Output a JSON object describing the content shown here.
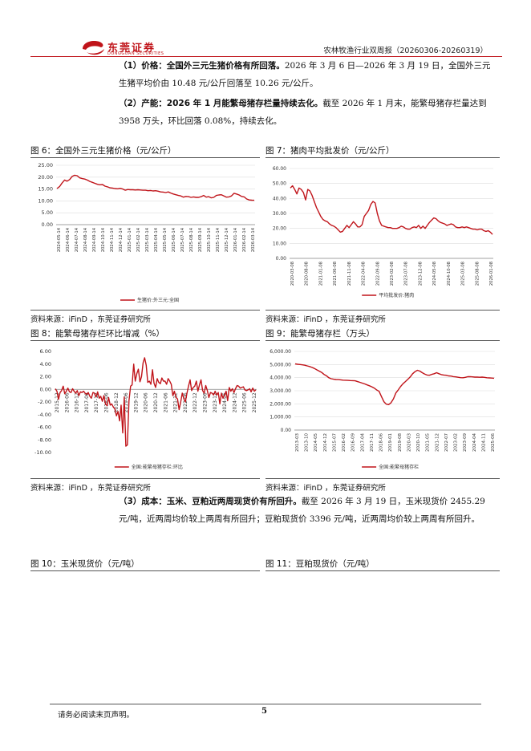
{
  "header": {
    "logo_cn": "东莞证券",
    "logo_en": "DONGGUAN SECURITIES",
    "report_title": "农林牧渔行业双周报（20260306-20260319）"
  },
  "paragraphs": {
    "p1_bold": "（1）价格：全国外三元生猪价格有所回落。",
    "p1_text": "2026 年 3 月 6 日—2026 年 3 月 19 日，全国外三元生猪平均价由 10.48 元/公斤回落至 10.26 元/公斤。",
    "p2_bold": "（2）产能：2026 年 1 月能繁母猪存栏量持续去化。",
    "p2_text": "截至 2026 年 1 月末，能繁母猪存栏量达到 3958 万头，环比回落 0.08%，持续去化。",
    "p3_bold": "（3）成本：玉米、豆粕近两周现货价有所回升。",
    "p3_text": "截至 2026 年 3 月 19 日，玉米现货价 2455.29 元/吨，近两周均价较上两周有所回升；豆粕现货价 3396 元/吨，近两周均价较上两周有所回升。"
  },
  "figures": {
    "fig6_caption": "图 6：全国外三元生猪价格（元/公斤）",
    "fig7_caption": "图 7：猪肉平均批发价（元/公斤）",
    "fig8_caption": "图 8：能繁母猪存栏环比增减（%）",
    "fig9_caption": "图 9：能繁母猪存栏（万头）",
    "fig10_caption": "图 10：玉米现货价（元/吨）",
    "fig11_caption": "图 11：豆粕现货价（元/吨）",
    "source": "资料来源：iFinD ，东莞证券研究所"
  },
  "footer": {
    "disclaimer": "请务必阅读末页声明。",
    "page_number": "5"
  },
  "colors": {
    "series": "#c0141a",
    "brand": "#c0141a"
  },
  "chart_data": [
    {
      "id": "fig6",
      "type": "line",
      "title": "全国外三元生猪价格（元/公斤）",
      "legend": "生猪价:外三元:全国",
      "legend_position": "bottom",
      "ylim": [
        0,
        25
      ],
      "yticks": [
        "25.00",
        "20.00",
        "15.00",
        "10.00",
        "5.00",
        "0.00"
      ],
      "xticks": [
        "2024-05-14",
        "2024-06-14",
        "2024-07-14",
        "2024-08-14",
        "2024-09-14",
        "2024-10-14",
        "2024-11-14",
        "2024-12-14",
        "2025-01-14",
        "2025-02-14",
        "2025-03-14",
        "2025-04-14",
        "2025-05-14",
        "2025-06-14",
        "2025-07-14",
        "2025-08-14",
        "2025-09-14",
        "2025-10-14",
        "2025-11-14",
        "2025-12-14",
        "2026-01-14",
        "2026-02-14",
        "2026-03-14"
      ],
      "values": [
        15.2,
        16.0,
        17.5,
        18.8,
        18.3,
        19.0,
        20.3,
        20.8,
        20.6,
        19.7,
        19.4,
        19.2,
        18.8,
        18.2,
        17.8,
        17.4,
        17.0,
        16.8,
        16.9,
        16.2,
        15.9,
        15.5,
        15.4,
        15.2,
        15.1,
        15.3,
        15.0,
        14.5,
        14.8,
        14.7,
        14.7,
        14.6,
        14.7,
        14.6,
        14.5,
        14.5,
        14.3,
        14.4,
        14.2,
        14.3,
        14.1,
        13.8,
        13.7,
        13.5,
        13.8,
        13.3,
        12.9,
        12.6,
        12.3,
        12.1,
        11.6,
        11.9,
        11.8,
        11.5,
        11.7,
        11.5,
        11.5,
        11.8,
        12.3,
        11.6,
        11.8,
        11.3,
        11.5,
        12.3,
        12.5,
        12.6,
        12.1,
        11.6,
        11.7,
        12.1,
        13.2,
        12.9,
        12.5,
        11.9,
        11.7,
        10.8,
        10.4,
        10.3,
        10.26
      ]
    },
    {
      "id": "fig7",
      "type": "line",
      "title": "猪肉平均批发价（元/公斤）",
      "legend": "平均批发价:猪肉",
      "legend_position": "bottom",
      "ylim": [
        0,
        60
      ],
      "yticks": [
        "60.00",
        "50.00",
        "40.00",
        "30.00",
        "20.00",
        "10.00",
        "0.00"
      ],
      "xticks": [
        "2020-03-08",
        "2020-08-08",
        "2021-01-08",
        "2021-06-08",
        "2021-11-08",
        "2022-04-08",
        "2022-09-08",
        "2023-02-08",
        "2023-07-08",
        "2023-12-08",
        "2024-05-08",
        "2024-10-08",
        "2025-03-08",
        "2025-08-08",
        "2026-01-08"
      ],
      "values": [
        47,
        48.5,
        46,
        43,
        47,
        46,
        44,
        39,
        46,
        45,
        42,
        38,
        34,
        31,
        28,
        26,
        25,
        24.5,
        23,
        22,
        21.5,
        20.5,
        19,
        17.5,
        18,
        20,
        22,
        20.5,
        22.5,
        24.5,
        23,
        21,
        21,
        22.5,
        28,
        30,
        32,
        36,
        38,
        37,
        30,
        25,
        22,
        21.5,
        21,
        20.5,
        20.5,
        20,
        20,
        20,
        20.5,
        21.5,
        21,
        20,
        19.5,
        19.5,
        20.5,
        21,
        20.5,
        22,
        20,
        21.5,
        20,
        22,
        24,
        25.5,
        27,
        26.5,
        25,
        24,
        23.5,
        23,
        22,
        22.5,
        23,
        22.5,
        21,
        20.5,
        20.5,
        21,
        20.5,
        21,
        20.5,
        20,
        19.5,
        19.5,
        19,
        19.5,
        19.5,
        18.5,
        18,
        18.5,
        17.5,
        16
      ]
    },
    {
      "id": "fig8",
      "type": "line",
      "title": "能繁母猪存栏环比增减（%）",
      "legend": "全国:能繁母猪存栏:环比",
      "legend_position": "bottom",
      "ylim": [
        -10,
        6
      ],
      "yticks": [
        "6.00",
        "4.00",
        "2.00",
        "0.00",
        "-2.00",
        "-4.00",
        "-6.00",
        "-8.00",
        "-10.00"
      ],
      "xticks": [
        "2015-12",
        "2016-06",
        "2016-12",
        "2017-06",
        "2017-12",
        "2018-06",
        "2018-12",
        "2019-06",
        "2019-12",
        "2020-06",
        "2020-12",
        "2021-06",
        "2021-12",
        "2022-06",
        "2022-12",
        "2023-06",
        "2023-12",
        "2024-06",
        "2024-12",
        "2025-06",
        "2025-12"
      ],
      "values": [
        0.1,
        -0.3,
        -1.6,
        -0.5,
        -0.2,
        0.5,
        -0.7,
        -0.3,
        0.2,
        -0.4,
        -0.5,
        0.1,
        -0.3,
        -0.6,
        -0.2,
        -1.0,
        -0.4,
        -0.5,
        -0.3,
        -0.6,
        -0.8,
        -0.5,
        -1.1,
        -1.4,
        -0.5,
        -0.6,
        -1.2,
        -0.4,
        -1.4,
        -1.1,
        -1.9,
        -1.0,
        -2.3,
        -2.6,
        -1.3,
        -2.5,
        -2.3,
        -2.8,
        -3.1,
        -4.2,
        -3.5,
        -5.0,
        -2.5,
        -6.9,
        -1.2,
        -9.0,
        -8.8,
        -1.8,
        0.5,
        0.7,
        4.0,
        1.3,
        2.5,
        3.2,
        1.2,
        2.0,
        4.2,
        5.0,
        3.8,
        1.1,
        1.3,
        0.8,
        3.1,
        1.0,
        0.3,
        1.7,
        1.1,
        0.9,
        1.8,
        1.3,
        1.3,
        0.8,
        1.7,
        1.3,
        0.8,
        -1.0,
        -0.3,
        -1.3,
        -1.5,
        -3.2,
        -2.0,
        -0.6,
        -1.5,
        -2.0,
        -0.6,
        0.5,
        1.5,
        -0.2,
        0.3,
        0.5,
        1.3,
        -0.3,
        0.7,
        1.5,
        -0.2,
        -0.6,
        0.6,
        -0.2,
        -1.3,
        -0.5,
        -0.6,
        -0.9,
        -0.3,
        -0.9,
        -0.5,
        -2.3,
        -0.6,
        -1.4,
        -0.9,
        -0.3,
        -1.8,
        0.3,
        -0.3,
        0.1,
        -0.5,
        0.1,
        0.6,
        0.5,
        0.2,
        0.3,
        0.4,
        -0.1,
        -0.2,
        -0.1,
        0.1,
        -0.4,
        0.2,
        -0.3,
        -0.08
      ]
    },
    {
      "id": "fig9",
      "type": "line",
      "title": "能繁母猪存栏（万头）",
      "legend": "全国:能繁母猪存栏",
      "legend_position": "bottom",
      "ylim": [
        0,
        6000
      ],
      "yticks": [
        "6,000.00",
        "5,000.00",
        "4,000.00",
        "3,000.00",
        "2,000.00",
        "1,000.00",
        "0.00"
      ],
      "xticks": [
        "2013-03",
        "2013-10",
        "2014-05",
        "2014-12",
        "2015-07",
        "2016-02",
        "2016-09",
        "2017-04",
        "2017-11",
        "2018-06",
        "2019-01",
        "2019-08",
        "2020-03",
        "2020-10",
        "2021-05",
        "2021-12",
        "2022-07",
        "2023-02",
        "2023-09",
        "2024-04",
        "2024-11",
        "2025-06"
      ],
      "values": [
        5050,
        5020,
        5000,
        4980,
        4950,
        4900,
        4850,
        4780,
        4700,
        4600,
        4500,
        4400,
        4250,
        4150,
        4000,
        3920,
        3880,
        3860,
        3850,
        3830,
        3810,
        3800,
        3790,
        3780,
        3770,
        3760,
        3700,
        3640,
        3580,
        3520,
        3450,
        3380,
        3300,
        3200,
        3060,
        2960,
        2550,
        2170,
        1980,
        1940,
        2090,
        2380,
        2830,
        3070,
        3330,
        3540,
        3700,
        3870,
        4050,
        4300,
        4460,
        4560,
        4500,
        4380,
        4280,
        4200,
        4180,
        4250,
        4300,
        4380,
        4300,
        4230,
        4200,
        4180,
        4130,
        4120,
        4080,
        4060,
        4030,
        4000,
        3990,
        4020,
        4070,
        4080,
        4060,
        4040,
        4040,
        4030,
        4040,
        4020,
        3990,
        3980,
        3970,
        3958
      ]
    }
  ]
}
